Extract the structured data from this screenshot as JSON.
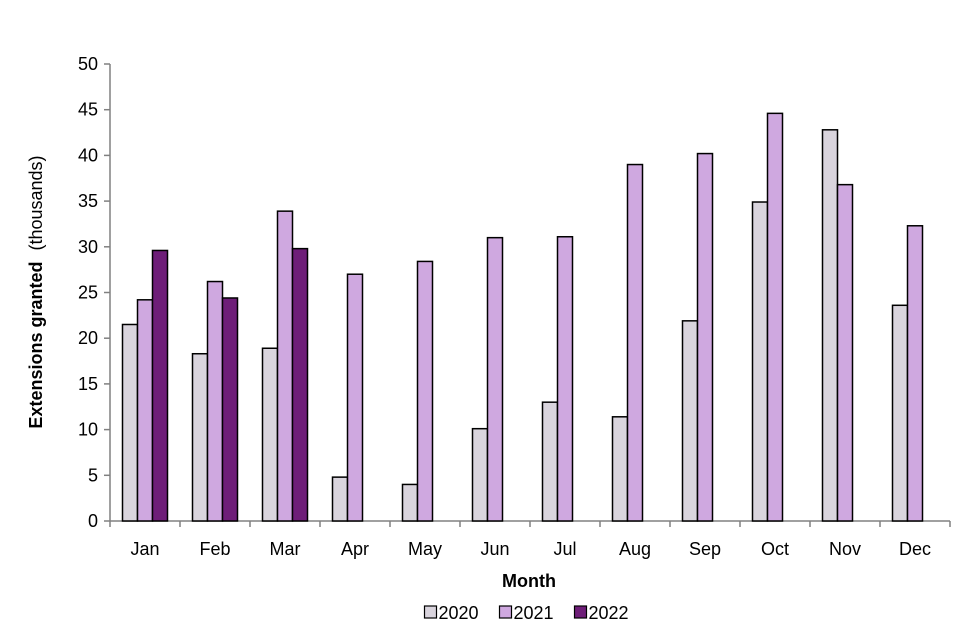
{
  "chart_data": {
    "type": "bar",
    "categories": [
      "Jan",
      "Feb",
      "Mar",
      "Apr",
      "May",
      "Jun",
      "Jul",
      "Aug",
      "Sep",
      "Oct",
      "Nov",
      "Dec"
    ],
    "series": [
      {
        "name": "2020",
        "color": "#d9d4dd",
        "values": [
          21.5,
          18.3,
          18.9,
          4.8,
          4.0,
          10.1,
          13.0,
          11.4,
          21.9,
          34.9,
          42.8,
          23.6
        ]
      },
      {
        "name": "2021",
        "color": "#cfa8e0",
        "values": [
          24.2,
          26.2,
          33.9,
          27.0,
          28.4,
          31.0,
          31.1,
          39.0,
          40.2,
          44.6,
          36.8,
          32.3
        ]
      },
      {
        "name": "2022",
        "color": "#6e1e78",
        "values": [
          29.6,
          24.4,
          29.8,
          null,
          null,
          null,
          null,
          null,
          null,
          null,
          null,
          null
        ]
      }
    ],
    "ylim": [
      0,
      50
    ],
    "yticks": [
      0,
      5,
      10,
      15,
      20,
      25,
      30,
      35,
      40,
      45,
      50
    ],
    "xlabel": "Month",
    "ylabel_bold": "Extensions granted",
    "ylabel_rest": "(thousands)",
    "grid": false,
    "legend_position": "bottom"
  }
}
